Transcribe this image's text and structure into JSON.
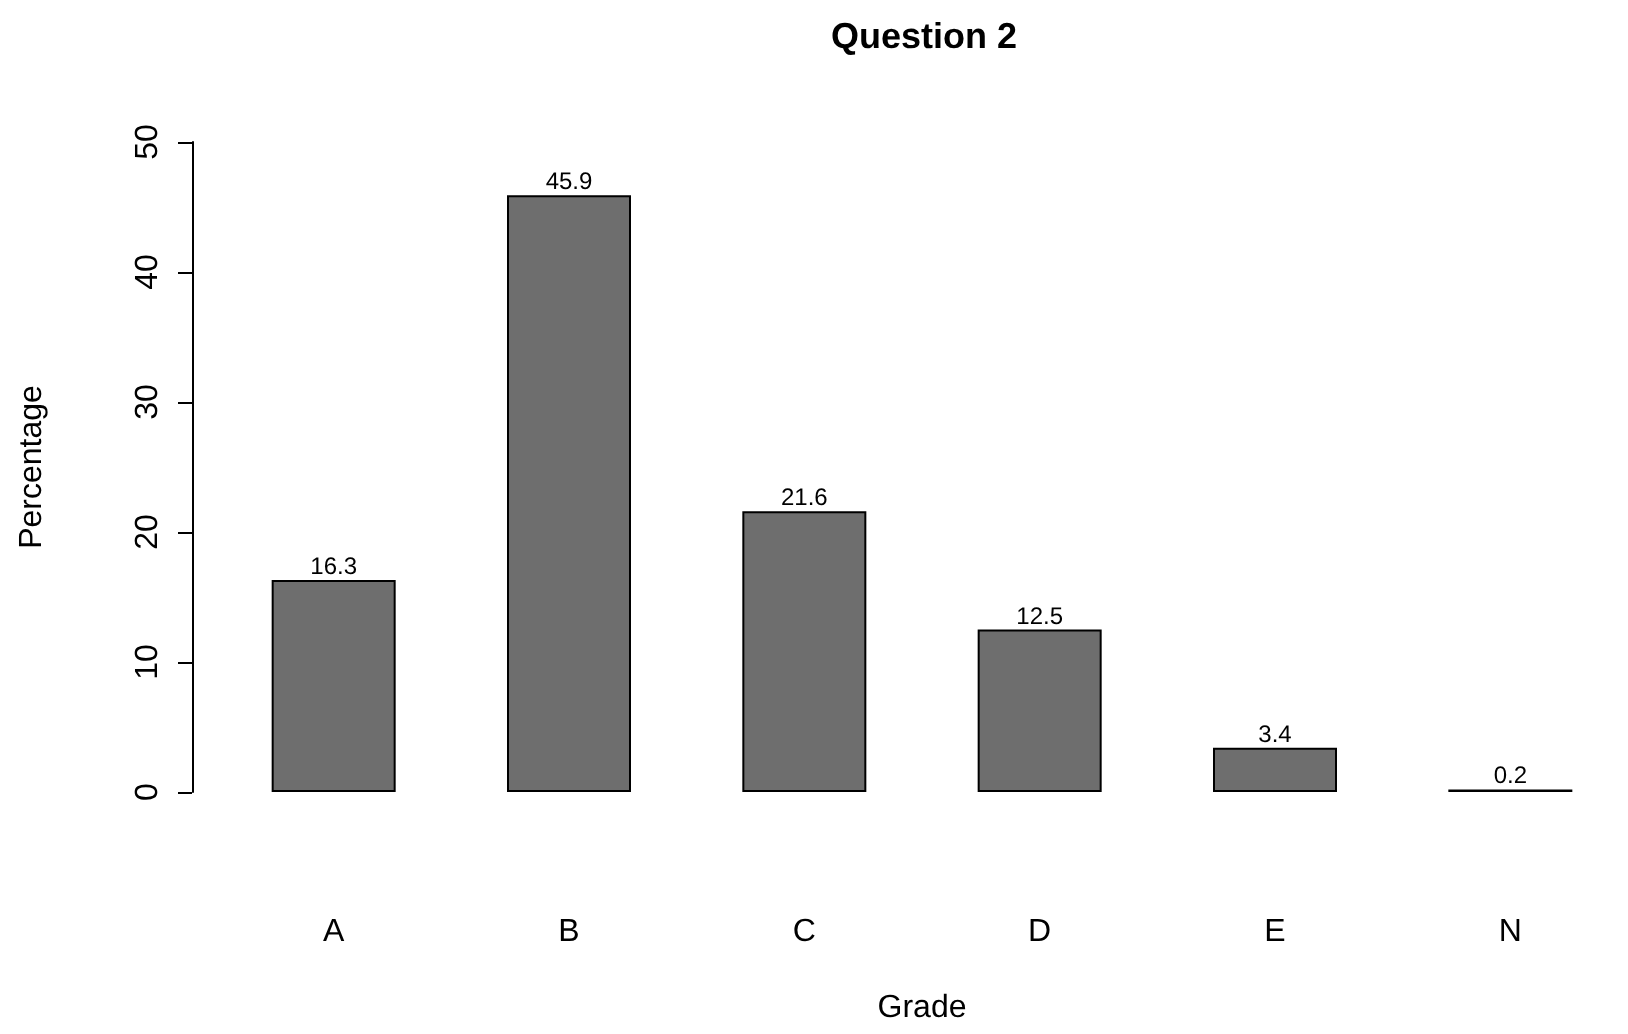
{
  "chart_data": {
    "type": "bar",
    "title": "Question 2",
    "xlabel": "Grade",
    "ylabel": "Percentage",
    "categories": [
      "A",
      "B",
      "C",
      "D",
      "E",
      "N"
    ],
    "values": [
      16.3,
      45.9,
      21.6,
      12.5,
      3.4,
      0.2
    ],
    "color": "#6e6e6e",
    "ylim": [
      0,
      50
    ],
    "yticks": [
      0,
      10,
      20,
      30,
      40,
      50
    ],
    "data_labels": true
  }
}
